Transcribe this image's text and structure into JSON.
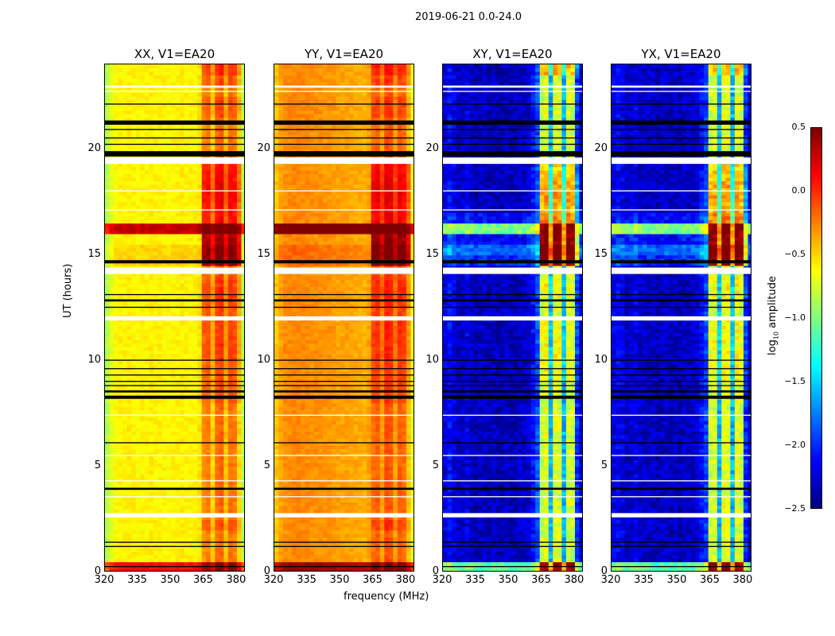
{
  "chart_data": {
    "type": "heatmap",
    "suptitle": "2019-06-21 0.0-24.0",
    "xlabel": "frequency (MHz)",
    "ylabel": "UT (hours)",
    "xlim": [
      320,
      384
    ],
    "ylim": [
      0,
      24
    ],
    "xticks": [
      "320",
      "335",
      "350",
      "365",
      "380"
    ],
    "yticks": [
      "0",
      "5",
      "10",
      "15",
      "20"
    ],
    "colorbar": {
      "label_main": "log",
      "label_sub": "10",
      "label_rest": " amplitude",
      "range": [
        -2.5,
        0.5
      ],
      "ticks": [
        "0.5",
        "0.0",
        "−0.5",
        "−1.0",
        "−1.5",
        "−2.0",
        "−2.5"
      ],
      "colormap": "jet"
    },
    "freq_bin_MHz": 2,
    "time_bin_hours": 0.5,
    "panels": [
      {
        "title": "XX, V1=EA20",
        "group": "parallel",
        "freq_profile": [
          -0.85,
          -0.7,
          -0.62,
          -0.6,
          -0.6,
          -0.58,
          -0.6,
          -0.62,
          -0.6,
          -0.6,
          -0.58,
          -0.6,
          -0.6,
          -0.6,
          -0.62,
          -0.6,
          -0.6,
          -0.58,
          -0.6,
          -0.6,
          -0.6,
          -0.55,
          -0.3,
          -0.25,
          -0.5,
          -0.2,
          -0.15,
          -0.45,
          -0.2,
          -0.25,
          -0.5,
          -0.85
        ]
      },
      {
        "title": "YY, V1=EA20",
        "group": "parallel",
        "freq_profile": [
          -0.45,
          -0.35,
          -0.3,
          -0.28,
          -0.27,
          -0.27,
          -0.28,
          -0.28,
          -0.3,
          -0.3,
          -0.3,
          -0.32,
          -0.32,
          -0.33,
          -0.35,
          -0.35,
          -0.35,
          -0.36,
          -0.37,
          -0.38,
          -0.4,
          -0.35,
          -0.2,
          -0.15,
          -0.35,
          -0.1,
          -0.12,
          -0.35,
          -0.15,
          -0.2,
          -0.45,
          -0.7
        ]
      },
      {
        "title": "XY, V1=EA20",
        "group": "cross",
        "freq_profile": [
          -2.2,
          -2.1,
          -2.2,
          -2.3,
          -2.3,
          -2.2,
          -2.3,
          -2.35,
          -2.3,
          -2.3,
          -2.35,
          -2.3,
          -2.35,
          -2.35,
          -2.3,
          -2.35,
          -2.35,
          -2.3,
          -2.3,
          -2.25,
          -2.1,
          -1.9,
          -0.8,
          -0.7,
          -1.6,
          -0.7,
          -0.75,
          -1.6,
          -0.75,
          -0.8,
          -2.0,
          -2.3
        ]
      },
      {
        "title": "YX, V1=EA20",
        "group": "cross",
        "freq_profile": [
          -2.2,
          -2.15,
          -2.2,
          -2.3,
          -2.25,
          -2.2,
          -2.3,
          -2.3,
          -2.3,
          -2.3,
          -2.35,
          -2.3,
          -2.3,
          -2.35,
          -2.3,
          -2.35,
          -2.3,
          -2.3,
          -2.3,
          -2.25,
          -2.1,
          -1.95,
          -0.8,
          -0.75,
          -1.6,
          -0.7,
          -0.7,
          -1.6,
          -0.7,
          -0.8,
          -2.0,
          -2.3
        ]
      }
    ],
    "band_MHz": [
      364,
      382
    ],
    "time_modulation": {
      "parallel": {
        "all": [
          0.7,
          0,
          0,
          0,
          0,
          0,
          0,
          0,
          0,
          0,
          0,
          0,
          0,
          0,
          0,
          0,
          0,
          0,
          0,
          0,
          0,
          0,
          0,
          0,
          0,
          0,
          0,
          0,
          0,
          0.1,
          0.1,
          0,
          0.9,
          0,
          0,
          0,
          0,
          0,
          0,
          0,
          0,
          0,
          0,
          0,
          0,
          0,
          0,
          0
        ],
        "band": [
          0,
          0,
          0,
          0,
          0.1,
          0,
          0,
          0,
          0,
          0,
          0,
          0,
          0,
          0,
          0,
          0,
          0.1,
          0.1,
          0.1,
          0.1,
          0.15,
          0.15,
          0.15,
          0.15,
          0.1,
          0.15,
          0.2,
          0.15,
          0.1,
          0.6,
          0.6,
          0.6,
          0,
          0.3,
          0.3,
          0.35,
          0.35,
          0.3,
          0.3,
          0,
          0,
          0,
          0,
          0.1,
          0.1,
          0,
          0.1,
          0.2
        ]
      },
      "cross": {
        "all": [
          1.2,
          0,
          0,
          0,
          0,
          0,
          0,
          0,
          0,
          0,
          0,
          0,
          0,
          0,
          0,
          0,
          0,
          0,
          0,
          0,
          0,
          0,
          0,
          0,
          0,
          0,
          0,
          0,
          0,
          0.3,
          0.5,
          0.2,
          1.3,
          0.2,
          0,
          0,
          0,
          0,
          0,
          0,
          0,
          0,
          0,
          0,
          0,
          0,
          0,
          0
        ],
        "band": [
          0,
          0,
          0,
          0,
          0,
          0,
          0,
          0,
          0,
          0,
          0,
          0,
          0,
          0,
          0,
          0,
          0,
          0,
          0.1,
          0.1,
          0.1,
          0.1,
          0.1,
          0.1,
          0,
          0,
          0.1,
          0.1,
          0,
          1.0,
          1.0,
          1.0,
          0,
          0.3,
          0.35,
          0.4,
          0.35,
          0.3,
          0.2,
          0,
          0,
          0,
          0,
          0,
          0,
          0,
          0,
          0.3
        ]
      }
    },
    "flagged_white_hours": [
      [
        2.6,
        2.8
      ],
      [
        3.55,
        3.6
      ],
      [
        4.3,
        4.35
      ],
      [
        5.5,
        5.55
      ],
      [
        7.4,
        7.45
      ],
      [
        11.9,
        12.1
      ],
      [
        14.1,
        14.4
      ],
      [
        17.1,
        17.15
      ],
      [
        18.0,
        18.05
      ],
      [
        19.3,
        19.6
      ],
      [
        22.7,
        22.75
      ],
      [
        22.9,
        23.0
      ]
    ],
    "blank_black_hours": [
      [
        0.25,
        0.3
      ],
      [
        1.2,
        1.25
      ],
      [
        1.4,
        1.45
      ],
      [
        3.9,
        4.0
      ],
      [
        6.1,
        6.15
      ],
      [
        8.2,
        8.35
      ],
      [
        8.5,
        8.6
      ],
      [
        8.8,
        8.85
      ],
      [
        9.0,
        9.05
      ],
      [
        9.3,
        9.35
      ],
      [
        9.6,
        9.65
      ],
      [
        10.0,
        10.05
      ],
      [
        12.5,
        12.55
      ],
      [
        12.8,
        12.9
      ],
      [
        13.1,
        13.15
      ],
      [
        14.6,
        14.75
      ],
      [
        19.65,
        19.9
      ],
      [
        20.2,
        20.25
      ],
      [
        20.5,
        20.55
      ],
      [
        20.9,
        20.95
      ],
      [
        21.15,
        21.35
      ],
      [
        22.1,
        22.15
      ]
    ]
  }
}
